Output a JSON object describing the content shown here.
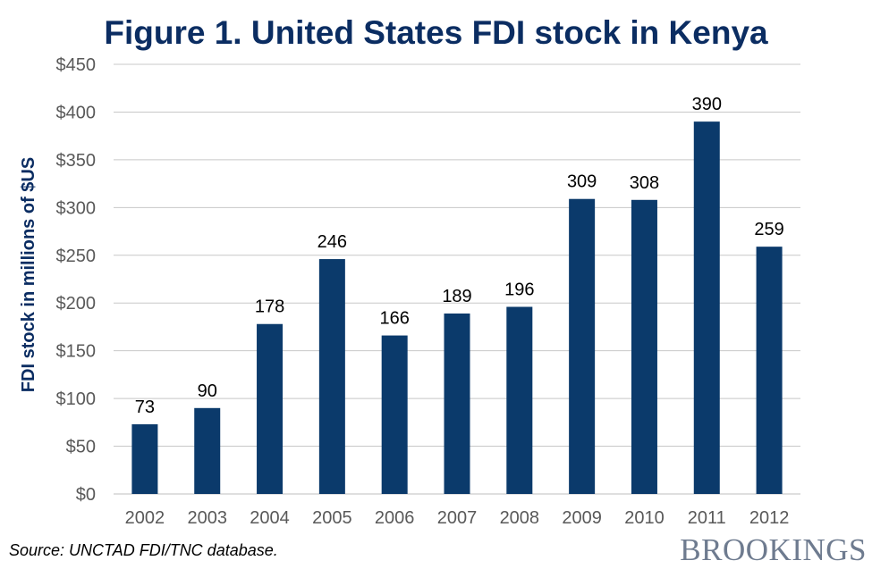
{
  "chart_data": {
    "type": "bar",
    "title": "Figure 1. United States FDI stock in Kenya",
    "categories": [
      "2002",
      "2003",
      "2004",
      "2005",
      "2006",
      "2007",
      "2008",
      "2009",
      "2010",
      "2011",
      "2012"
    ],
    "values": [
      73,
      90,
      178,
      246,
      166,
      189,
      196,
      309,
      308,
      390,
      259
    ],
    "data_labels": [
      "73",
      "90",
      "178",
      "246",
      "166",
      "189",
      "196",
      "309",
      "308",
      "390",
      "259"
    ],
    "xlabel": "",
    "ylabel": "FDI stock in millions of $US",
    "ylim": [
      0,
      450
    ],
    "yticks": [
      0,
      50,
      100,
      150,
      200,
      250,
      300,
      350,
      400,
      450
    ],
    "ytick_labels": [
      "$0",
      "$50",
      "$100",
      "$150",
      "$200",
      "$250",
      "$300",
      "$350",
      "$400",
      "$450"
    ],
    "grid": true,
    "bar_color": "#0b3a6b",
    "legend": "none"
  },
  "footer": {
    "source": "Source: UNCTAD FDI/TNC database.",
    "logo": "BROOKINGS"
  },
  "colors": {
    "title": "#0b2d62",
    "bar": "#0b3a6b",
    "grid": "#c8c8c8",
    "tick_text": "#595959",
    "logo": "#6e7b8f"
  }
}
